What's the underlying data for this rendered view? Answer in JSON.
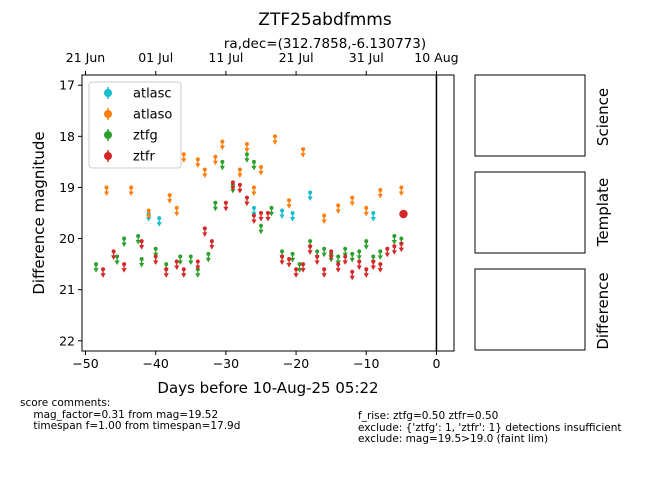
{
  "chart_data": {
    "type": "scatter",
    "title": "ZTF25abdfmms",
    "subtitle": "ra,dec=(312.7858,-6.130773)",
    "xlabel": "Days before 10-Aug-25 05:22",
    "ylabel": "Difference magnitude",
    "xlim": [
      -50.5,
      2.5
    ],
    "ylim": [
      22.2,
      16.8
    ],
    "y_inverted": true,
    "xticks": [
      -50,
      -40,
      -30,
      -20,
      -10,
      0
    ],
    "xtick_labels": [
      "−50",
      "−40",
      "−30",
      "−20",
      "−10",
      "0"
    ],
    "yticks": [
      17,
      18,
      19,
      20,
      21,
      22
    ],
    "top_ticks": [
      {
        "x": -50,
        "label": "21 Jun"
      },
      {
        "x": -40,
        "label": "01 Jul"
      },
      {
        "x": -30,
        "label": "11 Jul"
      },
      {
        "x": -20,
        "label": "21 Jul"
      },
      {
        "x": -10,
        "label": "31 Jul"
      },
      {
        "x": 0,
        "label": "10 Aug"
      }
    ],
    "vline_x": 0,
    "grid": false,
    "legend": "top-left",
    "series": [
      {
        "name": "atlasc",
        "color": "#17becf",
        "kind": "upper_limit",
        "points": [
          [
            -41,
            19.5
          ],
          [
            -39.5,
            19.6
          ],
          [
            -26,
            19.4
          ],
          [
            -22,
            19.45
          ],
          [
            -20.5,
            19.5
          ],
          [
            -18,
            19.1
          ],
          [
            -9,
            19.5
          ]
        ]
      },
      {
        "name": "atlaso",
        "color": "#ff7f0e",
        "kind": "upper_limit",
        "points": [
          [
            -47,
            19.0
          ],
          [
            -43.5,
            19.0
          ],
          [
            -41,
            19.45
          ],
          [
            -40,
            18.4
          ],
          [
            -38,
            19.15
          ],
          [
            -37,
            19.4
          ],
          [
            -36,
            18.35
          ],
          [
            -34,
            18.45
          ],
          [
            -33,
            18.65
          ],
          [
            -31.5,
            18.4
          ],
          [
            -30.5,
            18.1
          ],
          [
            -28,
            18.65
          ],
          [
            -27,
            18.15
          ],
          [
            -26,
            19.0
          ],
          [
            -25,
            18.6
          ],
          [
            -23,
            18.0
          ],
          [
            -21,
            19.25
          ],
          [
            -19,
            18.25
          ],
          [
            -16,
            19.55
          ],
          [
            -14,
            19.35
          ],
          [
            -12,
            19.2
          ],
          [
            -10,
            19.4
          ],
          [
            -8,
            19.05
          ],
          [
            -5,
            19.0
          ]
        ]
      },
      {
        "name": "ztfg",
        "color": "#2ca02c",
        "kind": "upper_limit",
        "points": [
          [
            -48.5,
            20.5
          ],
          [
            -45.5,
            20.35
          ],
          [
            -44.5,
            20.0
          ],
          [
            -42.5,
            19.95
          ],
          [
            -42,
            20.4
          ],
          [
            -40,
            20.2
          ],
          [
            -38.5,
            20.5
          ],
          [
            -36.5,
            20.35
          ],
          [
            -35,
            20.35
          ],
          [
            -34,
            20.6
          ],
          [
            -32.5,
            20.3
          ],
          [
            -31.5,
            19.3
          ],
          [
            -30.5,
            18.5
          ],
          [
            -29,
            18.95
          ],
          [
            -27,
            18.35
          ],
          [
            -26,
            18.5
          ],
          [
            -25,
            19.75
          ],
          [
            -23.5,
            19.4
          ],
          [
            -22,
            20.25
          ],
          [
            -20.5,
            20.3
          ],
          [
            -19.5,
            20.5
          ],
          [
            -18,
            20.05
          ],
          [
            -17,
            20.25
          ],
          [
            -16,
            20.2
          ],
          [
            -15,
            20.3
          ],
          [
            -14,
            20.35
          ],
          [
            -13,
            20.2
          ],
          [
            -12,
            20.3
          ],
          [
            -11,
            20.25
          ],
          [
            -10,
            20.05
          ],
          [
            -9,
            20.35
          ],
          [
            -8,
            20.25
          ],
          [
            -6,
            19.95
          ],
          [
            -5,
            20.0
          ]
        ]
      },
      {
        "name": "ztfr",
        "color": "#d62728",
        "kind": "mixed",
        "points": [
          [
            -47.5,
            20.6
          ],
          [
            -46,
            20.25
          ],
          [
            -44.5,
            20.5
          ],
          [
            -42,
            20.05
          ],
          [
            -40,
            20.35
          ],
          [
            -38.5,
            20.6
          ],
          [
            -37,
            20.45
          ],
          [
            -36,
            20.6
          ],
          [
            -34,
            20.45
          ],
          [
            -33,
            19.8
          ],
          [
            -32,
            20.05
          ],
          [
            -30,
            19.3
          ],
          [
            -29,
            18.9
          ],
          [
            -28,
            18.95
          ],
          [
            -27,
            19.2
          ],
          [
            -26,
            19.55
          ],
          [
            -25,
            19.5
          ],
          [
            -24,
            19.5
          ],
          [
            -22,
            20.35
          ],
          [
            -21,
            20.4
          ],
          [
            -20,
            20.6
          ],
          [
            -19,
            20.5
          ],
          [
            -18,
            20.15
          ],
          [
            -17,
            20.35
          ],
          [
            -16,
            20.6
          ],
          [
            -15,
            20.25
          ],
          [
            -14,
            20.5
          ],
          [
            -13,
            20.35
          ],
          [
            -12,
            20.65
          ],
          [
            -11,
            20.45
          ],
          [
            -10,
            20.6
          ],
          [
            -9,
            20.45
          ],
          [
            -8,
            20.5
          ],
          [
            -7,
            20.2
          ],
          [
            -6,
            20.15
          ],
          [
            -5,
            20.1
          ]
        ],
        "detection": {
          "x": -4.7,
          "y": 19.52,
          "err": 0.08
        }
      }
    ],
    "side_panels": [
      "Science",
      "Template",
      "Difference"
    ]
  },
  "comments": {
    "left": [
      "score comments:",
      "    mag_factor=0.31 from mag=19.52",
      "    timespan f=1.00 from timespan=17.9d"
    ],
    "right": [
      "f_rise: ztfg=0.50 ztfr=0.50",
      "exclude: {'ztfg': 1, 'ztfr': 1} detections insufficient",
      "exclude: mag=19.5>19.0 (faint lim)"
    ]
  }
}
